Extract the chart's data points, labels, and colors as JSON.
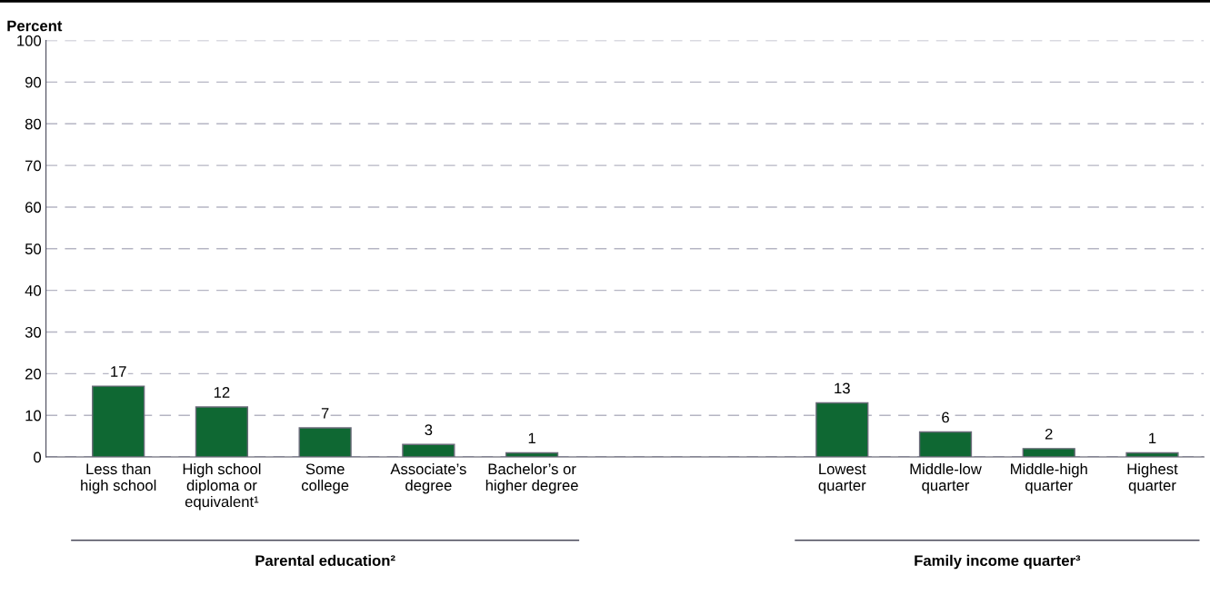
{
  "chart_data": {
    "type": "bar",
    "ylabel": "Percent",
    "categories": [
      "Less than\nhigh school",
      "High school\ndiploma or\nequivalent¹",
      "Some\ncollege",
      "Associate’s\ndegree",
      "Bachelor’s or\nhigher degree",
      null,
      null,
      "Lowest\nquarter",
      "Middle-low\nquarter",
      "Middle-high\nquarter",
      "Highest\nquarter"
    ],
    "values": [
      17,
      12,
      7,
      3,
      1,
      null,
      null,
      13,
      6,
      2,
      1
    ],
    "color": "#0f6833",
    "ylim": [
      0,
      100
    ],
    "yticks": [
      0,
      10,
      20,
      30,
      40,
      50,
      60,
      70,
      80,
      90,
      100
    ],
    "grid": "y",
    "data_labels": true,
    "annotations": [
      "Parental education²",
      "Family income quarter³"
    ]
  }
}
